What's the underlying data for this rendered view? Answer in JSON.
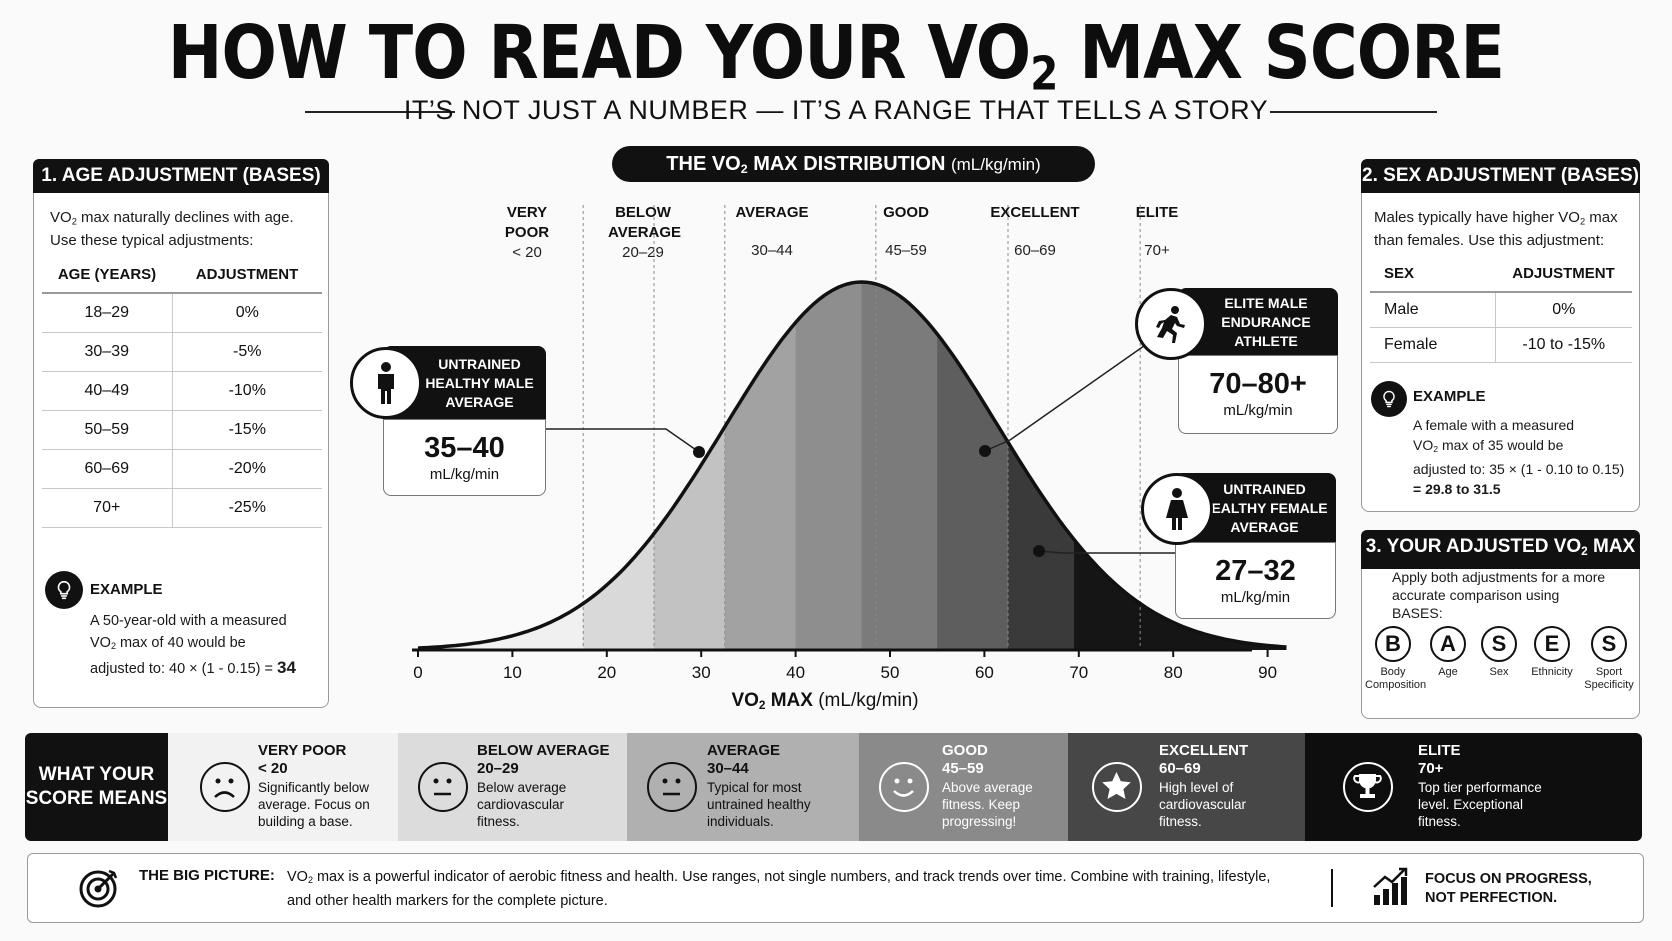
{
  "header": {
    "title_pre": "HOW TO READ YOUR VO",
    "title_sub": "2",
    "title_post": " MAX SCORE",
    "subtitle": "IT’S NOT JUST A NUMBER — IT’S A RANGE THAT TELLS A STORY"
  },
  "age_panel": {
    "title": "1. AGE ADJUSTMENT (BASES)",
    "intro_1a": "VO",
    "intro_1b": "2",
    "intro_1c": " max naturally declines with age.",
    "intro_2": "Use these typical adjustments:",
    "col_age": "AGE (YEARS)",
    "col_adj": "ADJUSTMENT",
    "rows": [
      {
        "age": "18–29",
        "adj": "0%"
      },
      {
        "age": "30–39",
        "adj": "-5%"
      },
      {
        "age": "40–49",
        "adj": "-10%"
      },
      {
        "age": "50–59",
        "adj": "-15%"
      },
      {
        "age": "60–69",
        "adj": "-20%"
      },
      {
        "age": "70+",
        "adj": "-25%"
      }
    ],
    "example_title": "EXAMPLE",
    "example_1": "A 50-year-old with a measured",
    "example_2a": "VO",
    "example_2b": "2",
    "example_2c": " max of 40 would be",
    "example_3": "adjusted to: 40 × (1 - 0.15) = ",
    "example_result": "34"
  },
  "distribution": {
    "title_pre": "THE VO",
    "title_sub": "2",
    "title_post": " MAX DISTRIBUTION ",
    "title_units": "(mL/kg/min)",
    "categories": [
      {
        "label": "VERY POOR",
        "range": "< 20"
      },
      {
        "label": "BELOW AVERAGE",
        "range": "20–29"
      },
      {
        "label": "AVERAGE",
        "range": "30–44"
      },
      {
        "label": "GOOD",
        "range": "45–59"
      },
      {
        "label": "EXCELLENT",
        "range": "60–69"
      },
      {
        "label": "ELITE",
        "range": "70+"
      }
    ],
    "x_ticks": [
      "0",
      "10",
      "20",
      "30",
      "40",
      "50",
      "60",
      "70",
      "80",
      "90"
    ],
    "xlabel_pre": "VO",
    "xlabel_sub": "2",
    "xlabel_post": " MAX ",
    "xlabel_units": "(mL/kg/min)",
    "shade_colors": [
      "#f0f0f0",
      "#d9d9d9",
      "#c2c2c2",
      "#a2a2a2",
      "#8e8e8e",
      "#7b7b7b",
      "#5e5e5e",
      "#3a3a3a",
      "#151515"
    ],
    "callouts": {
      "male": {
        "title": "UNTRAINED HEALTHY MALE AVERAGE",
        "value": "35–40",
        "unit": "mL/kg/min",
        "icon": "male-person-icon"
      },
      "elite": {
        "title": "ELITE MALE ENDURANCE ATHLETE",
        "value": "70–80+",
        "unit": "mL/kg/min",
        "icon": "runner-icon"
      },
      "female": {
        "title": "UNTRAINED HEALTHY FEMALE AVERAGE",
        "value": "27–32",
        "unit": "mL/kg/min",
        "icon": "female-person-icon"
      }
    }
  },
  "sex_panel": {
    "title": "2. SEX ADJUSTMENT (BASES)",
    "intro_1a": "Males typically have higher VO",
    "intro_1b": "2",
    "intro_1c": " max",
    "intro_2": "than females. Use this adjustment:",
    "col_sex": "SEX",
    "col_adj": "ADJUSTMENT",
    "rows": [
      {
        "sex": "Male",
        "adj": "0%"
      },
      {
        "sex": "Female",
        "adj": "-10 to -15%"
      }
    ],
    "example_title": "EXAMPLE",
    "example_1": "A female with a measured",
    "example_2a": "VO",
    "example_2b": "2",
    "example_2c": " max of 35 would be",
    "example_3": "adjusted to: 35 × (1 - 0.10 to 0.15)",
    "example_4": "= 29.8 to 31.5"
  },
  "adjusted_panel": {
    "title_pre": "3. YOUR ADJUSTED VO",
    "title_sub": "2",
    "title_post": " MAX",
    "text_1": "Apply both adjustments for a more",
    "text_2": "accurate comparison using",
    "text_3": "BASES:",
    "bases": [
      {
        "letter": "B",
        "word_1": "Body",
        "word_2": "Composition"
      },
      {
        "letter": "A",
        "word_1": "Age",
        "word_2": ""
      },
      {
        "letter": "S",
        "word_1": "Sex",
        "word_2": ""
      },
      {
        "letter": "E",
        "word_1": "Ethnicity",
        "word_2": ""
      },
      {
        "letter": "S",
        "word_1": "Sport",
        "word_2": "Specificity"
      }
    ]
  },
  "score_strip": {
    "label_1": "WHAT YOUR",
    "label_2": "SCORE MEANS",
    "segments": [
      {
        "title": "VERY POOR",
        "range": "< 20",
        "d1": "Significantly below",
        "d2": "average. Focus on",
        "d3": "building a base.",
        "icon": "sad-face-icon"
      },
      {
        "title": "BELOW AVERAGE",
        "range": "20–29",
        "d1": "Below average",
        "d2": "cardiovascular",
        "d3": "fitness.",
        "icon": "neutral-face-icon"
      },
      {
        "title": "AVERAGE",
        "range": "30–44",
        "d1": "Typical for most",
        "d2": "untrained healthy",
        "d3": "individuals.",
        "icon": "neutral-face-icon"
      },
      {
        "title": "GOOD",
        "range": "45–59",
        "d1": "Above average",
        "d2": "fitness. Keep",
        "d3": "progressing!",
        "icon": "smile-face-icon"
      },
      {
        "title": "EXCELLENT",
        "range": "60–69",
        "d1": "High level of",
        "d2": "cardiovascular",
        "d3": "fitness.",
        "icon": "star-icon"
      },
      {
        "title": "ELITE",
        "range": "70+",
        "d1": "Top tier performance",
        "d2": "level. Exceptional",
        "d3": "fitness.",
        "icon": "trophy-icon"
      }
    ]
  },
  "footer": {
    "label": "THE BIG PICTURE:",
    "text_1a": "VO",
    "text_1b": "2",
    "text_1c": " max is a powerful indicator of aerobic fitness and health. Use ranges, not single numbers, and track trends over time. Combine with training, lifestyle,",
    "text_2": "and other health markers for the complete picture.",
    "cta_1": "FOCUS ON PROGRESS,",
    "cta_2": "NOT PERFECTION."
  }
}
